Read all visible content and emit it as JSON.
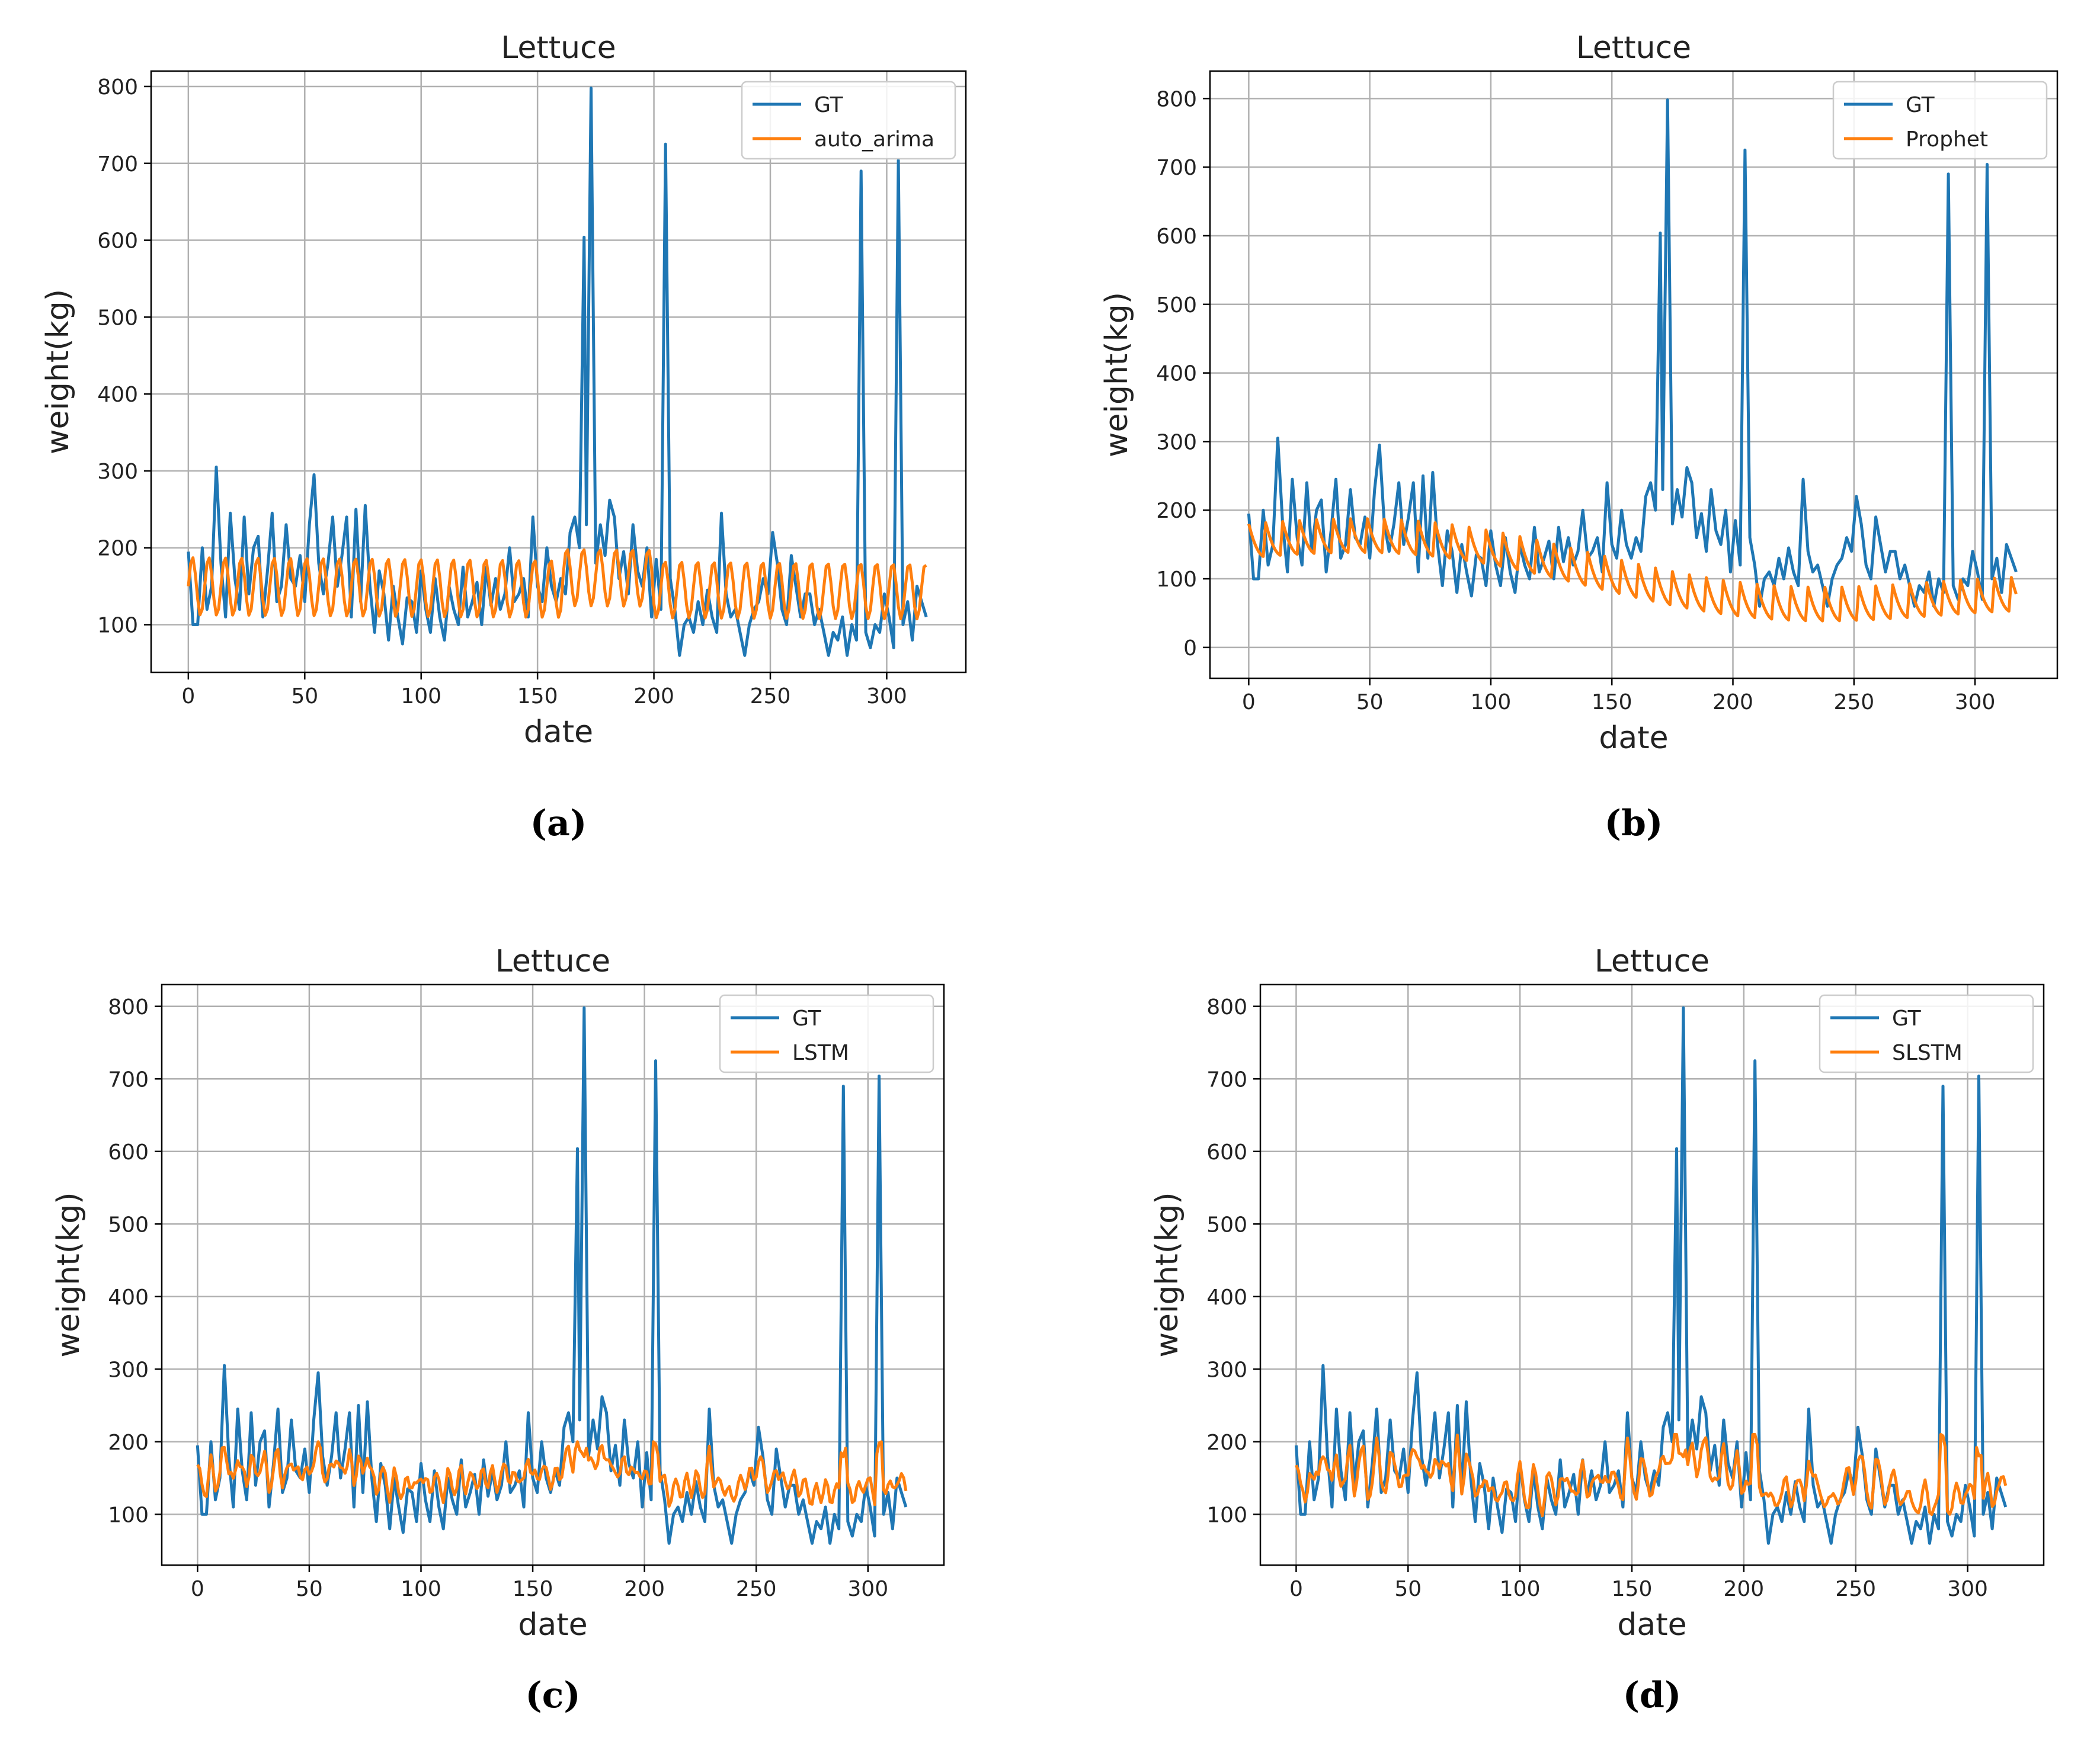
{
  "figure": {
    "captions": [
      "(a)",
      "(b)",
      "(c)",
      "(d)"
    ]
  },
  "colors": {
    "gt": "#1f77b4",
    "model": "#ff7f0e",
    "grid": "#b0b0b0"
  },
  "chart_data": [
    {
      "type": "line",
      "title": "Lettuce",
      "xlabel": "date",
      "ylabel": "weight(kg)",
      "xlim": [
        -16,
        334
      ],
      "ylim": [
        38,
        820
      ],
      "xticks": [
        0,
        50,
        100,
        150,
        200,
        250,
        300
      ],
      "yticks": [
        100,
        200,
        300,
        400,
        500,
        600,
        700,
        800
      ],
      "grid": true,
      "legend_position": "top-right",
      "series": [
        {
          "name": "GT",
          "color": "#1f77b4",
          "shape": "gt",
          "y_range": [
            60,
            798
          ],
          "anchors": [
            [
              0,
              195
            ],
            [
              2,
              100
            ],
            [
              4,
              100
            ],
            [
              6,
              200
            ],
            [
              8,
              120
            ],
            [
              10,
              150
            ],
            [
              12,
              305
            ],
            [
              14,
              180
            ],
            [
              16,
              110
            ],
            [
              18,
              245
            ],
            [
              20,
              160
            ],
            [
              22,
              120
            ],
            [
              24,
              240
            ],
            [
              26,
              140
            ],
            [
              28,
              200
            ],
            [
              30,
              215
            ],
            [
              32,
              110
            ],
            [
              34,
              170
            ],
            [
              36,
              245
            ],
            [
              38,
              130
            ],
            [
              40,
              150
            ],
            [
              42,
              230
            ],
            [
              44,
              160
            ],
            [
              46,
              150
            ],
            [
              48,
              190
            ],
            [
              50,
              130
            ],
            [
              52,
              230
            ],
            [
              54,
              295
            ],
            [
              56,
              180
            ],
            [
              58,
              140
            ],
            [
              60,
              180
            ],
            [
              62,
              240
            ],
            [
              64,
              150
            ],
            [
              66,
              190
            ],
            [
              68,
              240
            ],
            [
              70,
              110
            ],
            [
              72,
              250
            ],
            [
              74,
              130
            ],
            [
              76,
              255
            ],
            [
              78,
              150
            ],
            [
              80,
              90
            ],
            [
              82,
              170
            ],
            [
              84,
              140
            ],
            [
              86,
              80
            ],
            [
              88,
              150
            ],
            [
              90,
              110
            ],
            [
              92,
              75
            ],
            [
              94,
              135
            ],
            [
              96,
              130
            ],
            [
              98,
              90
            ],
            [
              100,
              170
            ],
            [
              102,
              120
            ],
            [
              104,
              90
            ],
            [
              106,
              160
            ],
            [
              108,
              110
            ],
            [
              110,
              80
            ],
            [
              112,
              150
            ],
            [
              114,
              120
            ],
            [
              116,
              100
            ],
            [
              118,
              175
            ],
            [
              120,
              110
            ],
            [
              122,
              130
            ],
            [
              124,
              155
            ],
            [
              126,
              100
            ],
            [
              128,
              175
            ],
            [
              130,
              125
            ],
            [
              132,
              160
            ],
            [
              134,
              120
            ],
            [
              136,
              140
            ],
            [
              138,
              200
            ],
            [
              140,
              130
            ],
            [
              142,
              140
            ],
            [
              144,
              160
            ],
            [
              146,
              110
            ],
            [
              148,
              240
            ],
            [
              150,
              150
            ],
            [
              152,
              130
            ],
            [
              154,
              200
            ],
            [
              156,
              150
            ],
            [
              158,
              130
            ],
            [
              160,
              160
            ],
            [
              162,
              140
            ],
            [
              164,
              220
            ],
            [
              166,
              240
            ],
            [
              168,
              200
            ],
            [
              170,
              604
            ],
            [
              171,
              230
            ],
            [
              173,
              798
            ],
            [
              175,
              180
            ],
            [
              177,
              230
            ],
            [
              179,
              190
            ],
            [
              181,
              262
            ],
            [
              183,
              240
            ],
            [
              185,
              160
            ],
            [
              187,
              195
            ],
            [
              189,
              140
            ],
            [
              191,
              230
            ],
            [
              193,
              170
            ],
            [
              195,
              150
            ],
            [
              197,
              200
            ],
            [
              199,
              110
            ],
            [
              201,
              185
            ],
            [
              203,
              120
            ],
            [
              205,
              725
            ],
            [
              207,
              160
            ],
            [
              209,
              120
            ],
            [
              211,
              60
            ],
            [
              213,
              100
            ],
            [
              215,
              110
            ],
            [
              217,
              90
            ],
            [
              219,
              130
            ],
            [
              221,
              100
            ],
            [
              223,
              145
            ],
            [
              225,
              110
            ],
            [
              227,
              90
            ],
            [
              229,
              245
            ],
            [
              231,
              140
            ],
            [
              233,
              110
            ],
            [
              235,
              120
            ],
            [
              237,
              90
            ],
            [
              239,
              60
            ],
            [
              241,
              100
            ],
            [
              243,
              120
            ],
            [
              245,
              130
            ],
            [
              247,
              160
            ],
            [
              249,
              140
            ],
            [
              251,
              220
            ],
            [
              253,
              180
            ],
            [
              255,
              120
            ],
            [
              257,
              100
            ],
            [
              259,
              190
            ],
            [
              261,
              150
            ],
            [
              263,
              110
            ],
            [
              265,
              140
            ],
            [
              267,
              140
            ],
            [
              269,
              100
            ],
            [
              271,
              120
            ],
            [
              273,
              90
            ],
            [
              275,
              60
            ],
            [
              277,
              90
            ],
            [
              279,
              80
            ],
            [
              281,
              110
            ],
            [
              283,
              60
            ],
            [
              285,
              100
            ],
            [
              287,
              80
            ],
            [
              289,
              690
            ],
            [
              291,
              90
            ],
            [
              293,
              70
            ],
            [
              295,
              100
            ],
            [
              297,
              90
            ],
            [
              299,
              140
            ],
            [
              301,
              110
            ],
            [
              303,
              70
            ],
            [
              305,
              704
            ],
            [
              307,
              100
            ],
            [
              309,
              130
            ],
            [
              311,
              80
            ],
            [
              313,
              150
            ],
            [
              315,
              130
            ],
            [
              317,
              110
            ]
          ]
        },
        {
          "name": "auto_arima",
          "color": "#ff7f0e",
          "shape": "arima",
          "y_range": [
            100,
            200
          ]
        }
      ]
    },
    {
      "type": "line",
      "title": "Lettuce",
      "xlabel": "date",
      "ylabel": "weight(kg)",
      "xlim": [
        -16,
        334
      ],
      "ylim": [
        -45,
        840
      ],
      "xticks": [
        0,
        50,
        100,
        150,
        200,
        250,
        300
      ],
      "yticks": [
        0,
        100,
        200,
        300,
        400,
        500,
        600,
        700,
        800
      ],
      "grid": true,
      "legend_position": "top-right",
      "series": [
        {
          "name": "GT",
          "color": "#1f77b4",
          "shape": "gt",
          "y_range": [
            60,
            798
          ]
        },
        {
          "name": "Prophet",
          "color": "#ff7f0e",
          "shape": "prophet",
          "y_range": [
            5,
            210
          ]
        }
      ]
    },
    {
      "type": "line",
      "title": "Lettuce",
      "xlabel": "date",
      "ylabel": "weight(kg)",
      "xlim": [
        -16,
        334
      ],
      "ylim": [
        30,
        830
      ],
      "xticks": [
        0,
        50,
        100,
        150,
        200,
        250,
        300
      ],
      "yticks": [
        100,
        200,
        300,
        400,
        500,
        600,
        700,
        800
      ],
      "grid": true,
      "legend_position": "top-right",
      "series": [
        {
          "name": "GT",
          "color": "#1f77b4",
          "shape": "gt",
          "y_range": [
            60,
            798
          ]
        },
        {
          "name": "LSTM",
          "color": "#ff7f0e",
          "shape": "lstm",
          "y_range": [
            100,
            200
          ]
        }
      ]
    },
    {
      "type": "line",
      "title": "Lettuce",
      "xlabel": "date",
      "ylabel": "weight(kg)",
      "xlim": [
        -16,
        334
      ],
      "ylim": [
        30,
        830
      ],
      "xticks": [
        0,
        50,
        100,
        150,
        200,
        250,
        300
      ],
      "yticks": [
        100,
        200,
        300,
        400,
        500,
        600,
        700,
        800
      ],
      "grid": true,
      "legend_position": "top-right",
      "series": [
        {
          "name": "GT",
          "color": "#1f77b4",
          "shape": "gt",
          "y_range": [
            60,
            798
          ]
        },
        {
          "name": "SLSTM",
          "color": "#ff7f0e",
          "shape": "slstm",
          "y_range": [
            75,
            210
          ]
        }
      ]
    }
  ]
}
